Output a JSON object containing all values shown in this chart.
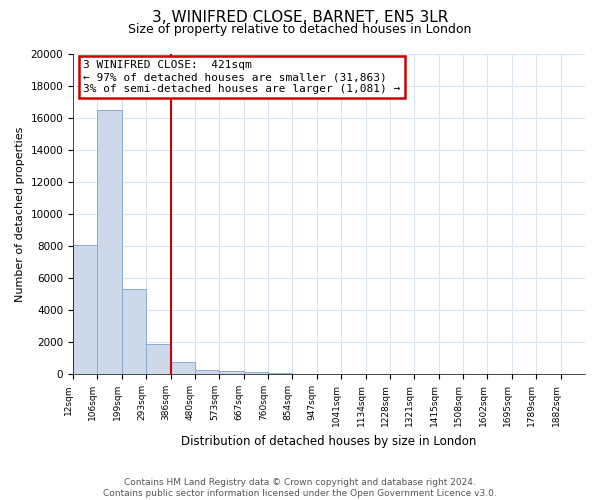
{
  "title": "3, WINIFRED CLOSE, BARNET, EN5 3LR",
  "subtitle": "Size of property relative to detached houses in London",
  "xlabel": "Distribution of detached houses by size in London",
  "ylabel": "Number of detached properties",
  "bar_color": "#cdd9ea",
  "bar_edge_color": "#8aabcf",
  "vline_color": "#cc0000",
  "vline_x": 4.0,
  "annotation_title": "3 WINIFRED CLOSE:  421sqm",
  "annotation_line1": "← 97% of detached houses are smaller (31,863)",
  "annotation_line2": "3% of semi-detached houses are larger (1,081) →",
  "annotation_box_color": "#ffffff",
  "annotation_box_edge": "#cc0000",
  "ylim": [
    0,
    20000
  ],
  "yticks": [
    0,
    2000,
    4000,
    6000,
    8000,
    10000,
    12000,
    14000,
    16000,
    18000,
    20000
  ],
  "bar_heights": [
    8100,
    16500,
    5300,
    1900,
    750,
    300,
    190,
    160,
    100,
    0,
    0,
    0,
    0,
    0,
    0,
    0,
    0,
    0,
    0,
    0,
    0
  ],
  "x_labels": [
    "12sqm",
    "106sqm",
    "199sqm",
    "293sqm",
    "386sqm",
    "480sqm",
    "573sqm",
    "667sqm",
    "760sqm",
    "854sqm",
    "947sqm",
    "1041sqm",
    "1134sqm",
    "1228sqm",
    "1321sqm",
    "1415sqm",
    "1508sqm",
    "1602sqm",
    "1695sqm",
    "1789sqm",
    "1882sqm"
  ],
  "footer_line1": "Contains HM Land Registry data © Crown copyright and database right 2024.",
  "footer_line2": "Contains public sector information licensed under the Open Government Licence v3.0.",
  "background_color": "#ffffff",
  "grid_color": "#d8e4f0"
}
